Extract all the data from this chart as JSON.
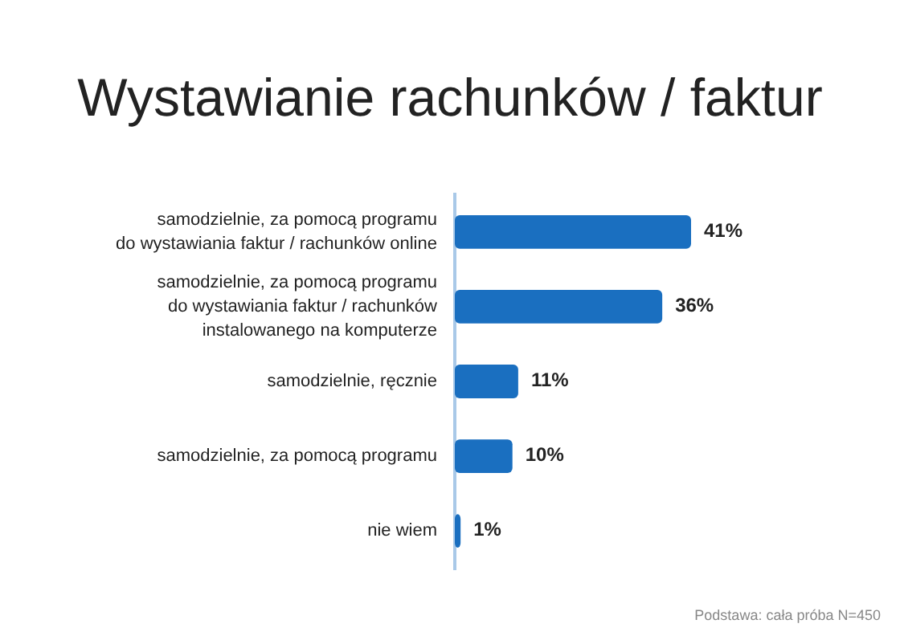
{
  "chart_data": {
    "type": "bar",
    "orientation": "horizontal",
    "title": "Wystawianie rachunków / faktur",
    "categories": [
      "samodzielnie, za pomocą programu\ndo wystawiania faktur / rachunków online",
      "samodzielnie, za pomocą programu\ndo wystawiania faktur / rachunków\ninstalowanego na komputerze",
      "samodzielnie, ręcznie",
      "samodzielnie, za pomocą programu",
      "nie wiem"
    ],
    "values": [
      41,
      36,
      11,
      10,
      1
    ],
    "value_labels": [
      "41%",
      "36%",
      "11%",
      "10%",
      "1%"
    ],
    "color": "#1a6fc0",
    "annotations": [
      "Podstawa: cała próba N=450"
    ]
  }
}
